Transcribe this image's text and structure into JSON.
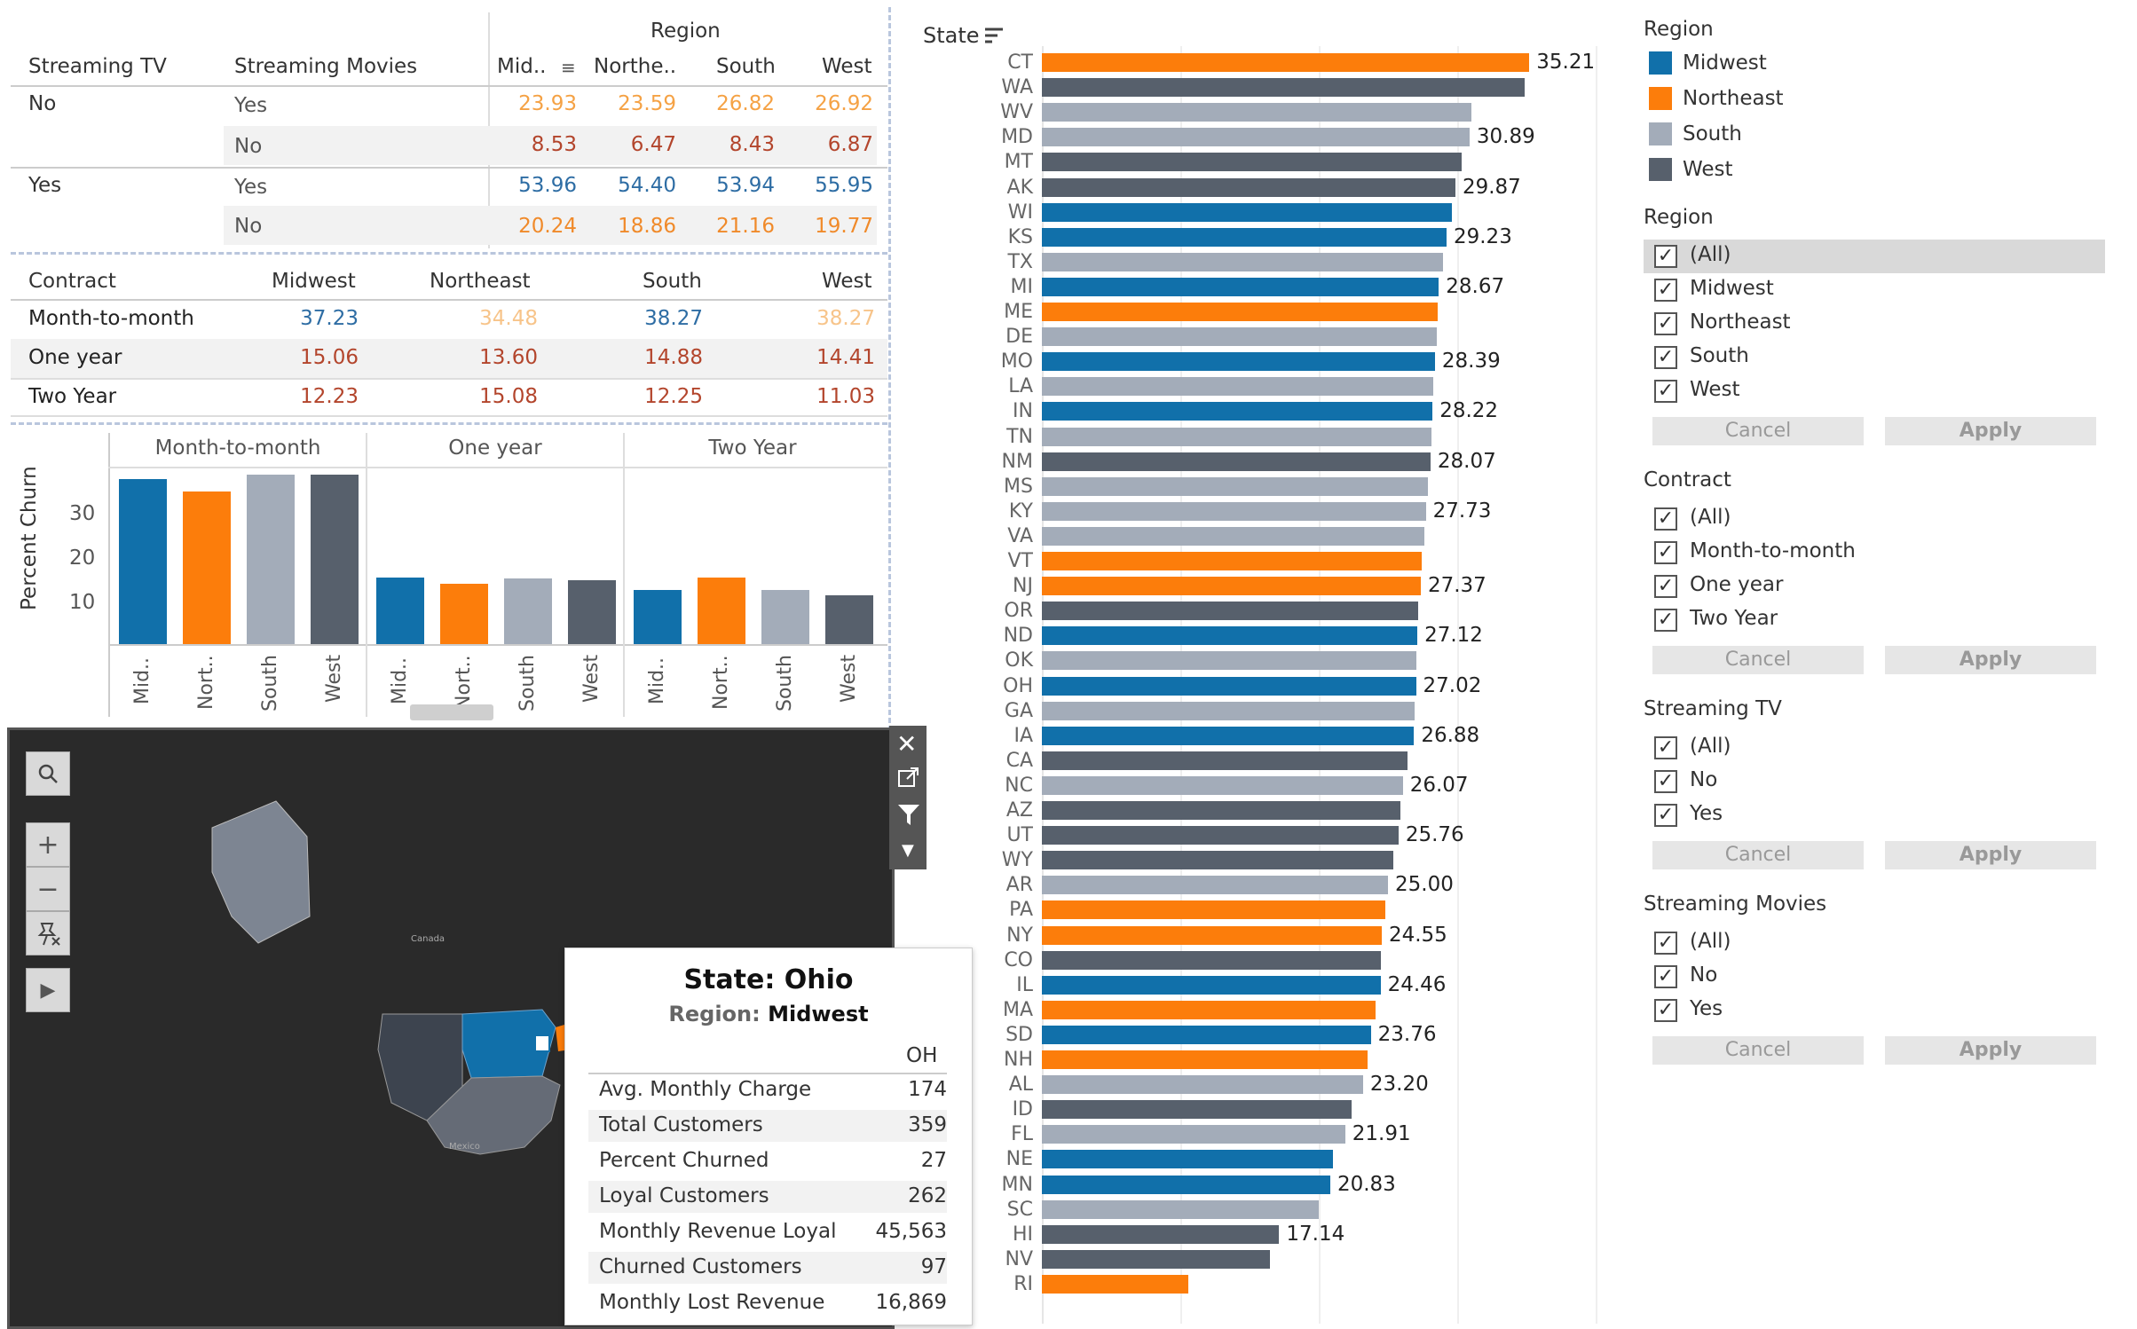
{
  "crosstab": {
    "region_header": "Region",
    "col_streaming_tv": "Streaming TV",
    "col_streaming_movies": "Streaming Movies",
    "region_cols": [
      "Mid..",
      "Northe..",
      "South",
      "West"
    ],
    "rows": [
      {
        "tv": "No",
        "movies": "Yes",
        "values": [
          "23.93",
          "23.59",
          "26.82",
          "26.92"
        ]
      },
      {
        "tv": "",
        "movies": "No",
        "values": [
          "8.53",
          "6.47",
          "8.43",
          "6.87"
        ]
      },
      {
        "tv": "Yes",
        "movies": "Yes",
        "values": [
          "53.96",
          "54.40",
          "53.94",
          "55.95"
        ]
      },
      {
        "tv": "",
        "movies": "No",
        "values": [
          "20.24",
          "18.86",
          "21.16",
          "19.77"
        ]
      }
    ]
  },
  "contract_table": {
    "col_contract": "Contract",
    "region_cols": [
      "Midwest",
      "Northeast",
      "South",
      "West"
    ],
    "rows": [
      {
        "label": "Month-to-month",
        "values": [
          "37.23",
          "34.48",
          "38.27",
          "38.27"
        ]
      },
      {
        "label": "One year",
        "values": [
          "15.06",
          "13.60",
          "14.88",
          "14.41"
        ]
      },
      {
        "label": "Two Year",
        "values": [
          "12.23",
          "15.08",
          "12.25",
          "11.03"
        ]
      }
    ]
  },
  "small_chart": {
    "type": "bar",
    "ylabel": "Percent Churn",
    "yticks": [
      "30",
      "20",
      "10"
    ],
    "panels": [
      "Month-to-month",
      "One year",
      "Two Year"
    ],
    "categories": [
      "Mid..",
      "Nort..",
      "South",
      "West"
    ],
    "values": [
      [
        37.23,
        34.48,
        38.27,
        38.27
      ],
      [
        15.06,
        13.6,
        14.88,
        14.41
      ],
      [
        12.23,
        15.08,
        12.25,
        11.03
      ]
    ]
  },
  "map": {
    "labels": {
      "canada": "Canada",
      "mexico": "Mexico"
    },
    "tools": {
      "search": "search-icon",
      "zoom_in": "+",
      "zoom_out": "−"
    }
  },
  "tooltip": {
    "title": "State: Ohio",
    "region_key": "Region:",
    "region_value": "Midwest",
    "col": "OH",
    "rows": [
      {
        "k": "Avg. Monthly Charge",
        "v": "174"
      },
      {
        "k": "Total Customers",
        "v": "359"
      },
      {
        "k": "Percent Churned",
        "v": "27"
      },
      {
        "k": "Loyal Customers",
        "v": "262"
      },
      {
        "k": "Monthly Revenue Loyal",
        "v": "45,563"
      },
      {
        "k": "Churned Customers",
        "v": "97"
      },
      {
        "k": "Monthly Lost Revenue",
        "v": "16,869"
      }
    ]
  },
  "chart_data": {
    "type": "bar",
    "orientation": "horizontal",
    "axis_title": "State",
    "xlim": [
      0,
      40
    ],
    "region_colors": {
      "Midwest": "#1170aa",
      "Northeast": "#fc7d0b",
      "South": "#a3acb9",
      "West": "#57606c"
    },
    "states": [
      {
        "s": "CT",
        "r": "Northeast",
        "v": 35.21,
        "lab": "35.21"
      },
      {
        "s": "WA",
        "r": "West",
        "v": 34.9,
        "lab": ""
      },
      {
        "s": "WV",
        "r": "South",
        "v": 31.0,
        "lab": ""
      },
      {
        "s": "MD",
        "r": "South",
        "v": 30.89,
        "lab": "30.89"
      },
      {
        "s": "MT",
        "r": "West",
        "v": 30.3,
        "lab": ""
      },
      {
        "s": "AK",
        "r": "West",
        "v": 29.87,
        "lab": "29.87"
      },
      {
        "s": "WI",
        "r": "Midwest",
        "v": 29.6,
        "lab": ""
      },
      {
        "s": "KS",
        "r": "Midwest",
        "v": 29.23,
        "lab": "29.23"
      },
      {
        "s": "TX",
        "r": "South",
        "v": 28.95,
        "lab": ""
      },
      {
        "s": "MI",
        "r": "Midwest",
        "v": 28.67,
        "lab": "28.67"
      },
      {
        "s": "ME",
        "r": "Northeast",
        "v": 28.6,
        "lab": ""
      },
      {
        "s": "DE",
        "r": "South",
        "v": 28.55,
        "lab": ""
      },
      {
        "s": "MO",
        "r": "Midwest",
        "v": 28.39,
        "lab": "28.39"
      },
      {
        "s": "LA",
        "r": "South",
        "v": 28.3,
        "lab": ""
      },
      {
        "s": "IN",
        "r": "Midwest",
        "v": 28.22,
        "lab": "28.22"
      },
      {
        "s": "TN",
        "r": "South",
        "v": 28.15,
        "lab": ""
      },
      {
        "s": "NM",
        "r": "West",
        "v": 28.07,
        "lab": "28.07"
      },
      {
        "s": "MS",
        "r": "South",
        "v": 27.9,
        "lab": ""
      },
      {
        "s": "KY",
        "r": "South",
        "v": 27.73,
        "lab": "27.73"
      },
      {
        "s": "VA",
        "r": "South",
        "v": 27.6,
        "lab": ""
      },
      {
        "s": "VT",
        "r": "Northeast",
        "v": 27.45,
        "lab": ""
      },
      {
        "s": "NJ",
        "r": "Northeast",
        "v": 27.37,
        "lab": "27.37"
      },
      {
        "s": "OR",
        "r": "West",
        "v": 27.2,
        "lab": ""
      },
      {
        "s": "ND",
        "r": "Midwest",
        "v": 27.12,
        "lab": "27.12"
      },
      {
        "s": "OK",
        "r": "South",
        "v": 27.05,
        "lab": ""
      },
      {
        "s": "OH",
        "r": "Midwest",
        "v": 27.02,
        "lab": "27.02"
      },
      {
        "s": "GA",
        "r": "South",
        "v": 26.95,
        "lab": ""
      },
      {
        "s": "IA",
        "r": "Midwest",
        "v": 26.88,
        "lab": "26.88"
      },
      {
        "s": "CA",
        "r": "West",
        "v": 26.4,
        "lab": ""
      },
      {
        "s": "NC",
        "r": "South",
        "v": 26.07,
        "lab": "26.07"
      },
      {
        "s": "AZ",
        "r": "West",
        "v": 25.9,
        "lab": ""
      },
      {
        "s": "UT",
        "r": "West",
        "v": 25.76,
        "lab": "25.76"
      },
      {
        "s": "WY",
        "r": "West",
        "v": 25.4,
        "lab": ""
      },
      {
        "s": "AR",
        "r": "South",
        "v": 25.0,
        "lab": "25.00"
      },
      {
        "s": "PA",
        "r": "Northeast",
        "v": 24.8,
        "lab": ""
      },
      {
        "s": "NY",
        "r": "Northeast",
        "v": 24.55,
        "lab": "24.55"
      },
      {
        "s": "CO",
        "r": "West",
        "v": 24.5,
        "lab": ""
      },
      {
        "s": "IL",
        "r": "Midwest",
        "v": 24.46,
        "lab": "24.46"
      },
      {
        "s": "MA",
        "r": "Northeast",
        "v": 24.1,
        "lab": ""
      },
      {
        "s": "SD",
        "r": "Midwest",
        "v": 23.76,
        "lab": "23.76"
      },
      {
        "s": "NH",
        "r": "Northeast",
        "v": 23.5,
        "lab": ""
      },
      {
        "s": "AL",
        "r": "South",
        "v": 23.2,
        "lab": "23.20"
      },
      {
        "s": "ID",
        "r": "West",
        "v": 22.4,
        "lab": ""
      },
      {
        "s": "FL",
        "r": "South",
        "v": 21.91,
        "lab": "21.91"
      },
      {
        "s": "NE",
        "r": "Midwest",
        "v": 21.0,
        "lab": ""
      },
      {
        "s": "MN",
        "r": "Midwest",
        "v": 20.83,
        "lab": "20.83"
      },
      {
        "s": "SC",
        "r": "South",
        "v": 20.0,
        "lab": ""
      },
      {
        "s": "HI",
        "r": "West",
        "v": 17.14,
        "lab": "17.14"
      },
      {
        "s": "NV",
        "r": "West",
        "v": 16.5,
        "lab": ""
      },
      {
        "s": "RI",
        "r": "Northeast",
        "v": 10.6,
        "lab": ""
      }
    ]
  },
  "legend": {
    "title": "Region",
    "items": [
      {
        "label": "Midwest",
        "color": "#1170aa"
      },
      {
        "label": "Northeast",
        "color": "#fc7d0b"
      },
      {
        "label": "South",
        "color": "#a3acb9"
      },
      {
        "label": "West",
        "color": "#57606c"
      }
    ]
  },
  "filters": {
    "region": {
      "title": "Region",
      "options": [
        "(All)",
        "Midwest",
        "Northeast",
        "South",
        "West"
      ]
    },
    "contract": {
      "title": "Contract",
      "options": [
        "(All)",
        "Month-to-month",
        "One year",
        "Two Year"
      ]
    },
    "streaming_tv": {
      "title": "Streaming TV",
      "options": [
        "(All)",
        "No",
        "Yes"
      ]
    },
    "streaming_movies": {
      "title": "Streaming Movies",
      "options": [
        "(All)",
        "No",
        "Yes"
      ]
    },
    "cancel_label": "Cancel",
    "apply_label": "Apply"
  }
}
